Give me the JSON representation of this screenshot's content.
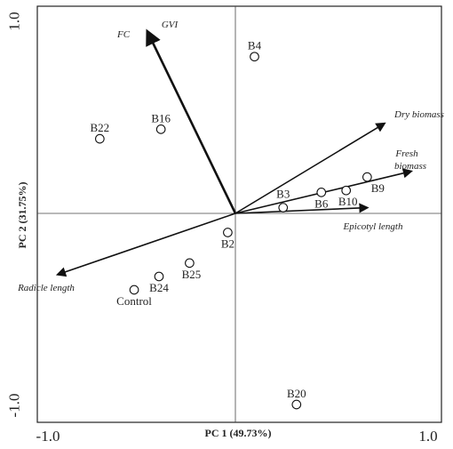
{
  "chart_data": {
    "type": "scatter",
    "subtype": "pca-biplot",
    "xlabel": "PC 1 (49.73%)",
    "ylabel": "PC 2 (31.75%)",
    "xlim": [
      -1.0,
      1.0
    ],
    "ylim": [
      -1.0,
      1.0
    ],
    "x_ticks": [
      "-1.0",
      "1.0"
    ],
    "y_ticks": [
      "1.0",
      "-1.0"
    ],
    "grid": false,
    "points": [
      {
        "label": "B4",
        "x": 0.1,
        "y": 0.82
      },
      {
        "label": "B22",
        "x": -0.71,
        "y": 0.39
      },
      {
        "label": "B16",
        "x": -0.39,
        "y": 0.44
      },
      {
        "label": "B3",
        "x": 0.25,
        "y": 0.03
      },
      {
        "label": "B6",
        "x": 0.45,
        "y": 0.11
      },
      {
        "label": "B10",
        "x": 0.58,
        "y": 0.12
      },
      {
        "label": "B9",
        "x": 0.69,
        "y": 0.19
      },
      {
        "label": "B2",
        "x": -0.04,
        "y": -0.1
      },
      {
        "label": "B25",
        "x": -0.24,
        "y": -0.26
      },
      {
        "label": "B24",
        "x": -0.4,
        "y": -0.33
      },
      {
        "label": "Control",
        "x": -0.53,
        "y": -0.4
      },
      {
        "label": "B20",
        "x": 0.32,
        "y": -1.0
      }
    ],
    "vectors": [
      {
        "label": "FC",
        "x": -0.46,
        "y": 0.95
      },
      {
        "label": "GVI",
        "x": -0.46,
        "y": 0.95
      },
      {
        "label": "Dry biomass",
        "x": 0.78,
        "y": 0.47
      },
      {
        "label": "Fresh biomass",
        "x": 0.92,
        "y": 0.22
      },
      {
        "label": "Epicotyl length",
        "x": 0.69,
        "y": 0.03
      },
      {
        "label": "Radicle length",
        "x": -0.93,
        "y": -0.32
      }
    ]
  }
}
